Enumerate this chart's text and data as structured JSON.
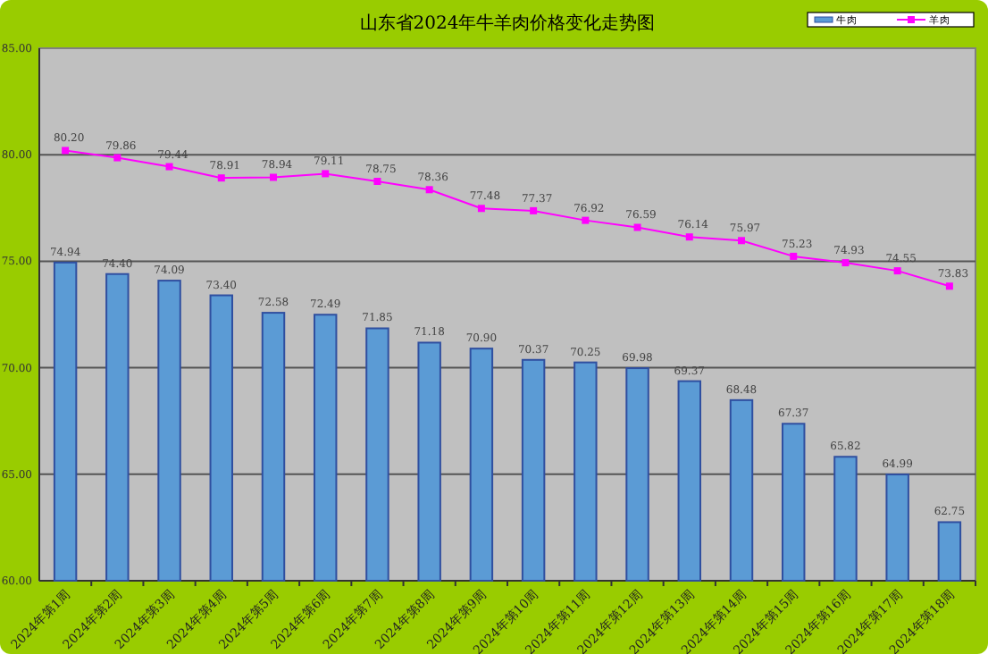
{
  "chart_data": {
    "type": "bar",
    "title": "山东省2024年牛羊肉价格变化走势图",
    "categories": [
      "2024年第1周",
      "2024年第2周",
      "2024年第3周",
      "2024年第4周",
      "2024年第5周",
      "2024年第6周",
      "2024年第7周",
      "2024年第8周",
      "2024年第9周",
      "2024年第10周",
      "2024年第11周",
      "2024年第12周",
      "2024年第13周",
      "2024年第14周",
      "2024年第15周",
      "2024年第16周",
      "2024年第17周",
      "2024年第18周"
    ],
    "series": [
      {
        "name": "牛肉",
        "color": "#5b9bd5",
        "values": [
          74.94,
          74.4,
          74.09,
          73.4,
          72.58,
          72.49,
          71.85,
          71.18,
          70.9,
          70.37,
          70.25,
          69.98,
          69.37,
          68.48,
          67.37,
          65.82,
          64.99,
          62.75
        ],
        "value_labels": [
          "74.94",
          "74.40",
          "74.09",
          "73.40",
          "72.58",
          "72.49",
          "71.85",
          "71.18",
          "70.90",
          "70.37",
          "70.25",
          "69.98",
          "69.37",
          "68.48",
          "67.37",
          "65.82",
          "64.99",
          "62.75"
        ]
      },
      {
        "name": "羊肉",
        "type": "line",
        "color": "#ff00ff",
        "marker": "square",
        "values": [
          80.2,
          79.86,
          79.44,
          78.91,
          78.94,
          79.11,
          78.75,
          78.36,
          77.48,
          77.37,
          76.92,
          76.59,
          76.14,
          75.97,
          75.23,
          74.93,
          74.55,
          73.83
        ],
        "value_labels": [
          "80.20",
          "79.86",
          "79.44",
          "78.91",
          "78.94",
          "79.11",
          "78.75",
          "78.36",
          "77.48",
          "77.37",
          "76.92",
          "76.59",
          "76.14",
          "75.97",
          "75.23",
          "74.93",
          "74.55",
          "73.83"
        ]
      }
    ],
    "ylim": [
      60,
      85
    ],
    "yticks": [
      {
        "value": 60,
        "label": "60.00"
      },
      {
        "value": 65,
        "label": "65.00"
      },
      {
        "value": 70,
        "label": "70.00"
      },
      {
        "value": 75,
        "label": "75.00"
      },
      {
        "value": 80,
        "label": "80.00"
      },
      {
        "value": 85,
        "label": "85.00"
      }
    ],
    "grid": "y",
    "legend": "top right"
  }
}
